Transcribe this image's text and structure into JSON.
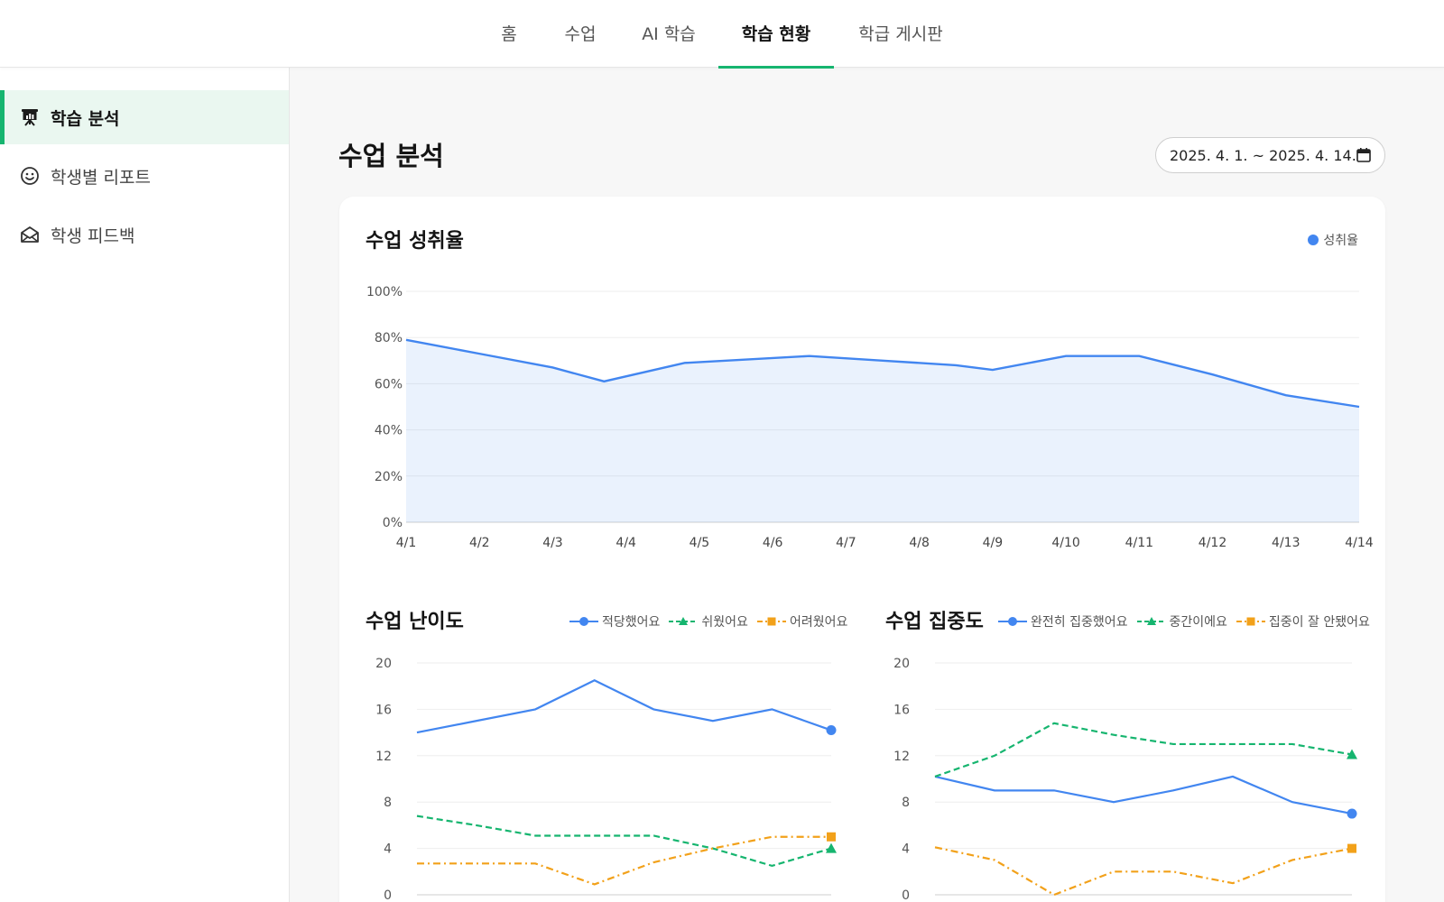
{
  "nav": {
    "tabs": [
      {
        "label": "홈"
      },
      {
        "label": "수업"
      },
      {
        "label": "AI 학습"
      },
      {
        "label": "학습 현황",
        "active": true
      },
      {
        "label": "학급 게시판"
      }
    ]
  },
  "sidebar": {
    "items": [
      {
        "label": "학습 분석",
        "icon": "presentation-chart-icon",
        "active": true
      },
      {
        "label": "학생별 리포트",
        "icon": "smiley-face-icon"
      },
      {
        "label": "학생 피드백",
        "icon": "open-envelope-icon"
      }
    ]
  },
  "main": {
    "title": "수업 분석",
    "date_range": "2025. 4. 1. ~ 2025. 4. 14."
  },
  "colors": {
    "accent": "#16b56f",
    "blue": "#4286f0",
    "green": "#16b56f",
    "orange": "#f2a11a"
  },
  "chart_data": [
    {
      "type": "area",
      "title": "수업 성취율",
      "legend_position": "top-right",
      "grid": true,
      "categories": [
        "4/1",
        "4/2",
        "4/3",
        "4/4",
        "4/5",
        "4/6",
        "4/7",
        "4/8",
        "4/9",
        "4/10",
        "4/11",
        "4/12",
        "4/13",
        "4/14"
      ],
      "y_ticks": [
        "0%",
        "20%",
        "40%",
        "60%",
        "80%",
        "100%"
      ],
      "ylim": [
        0,
        100
      ],
      "series": [
        {
          "name": "성취율",
          "x": [
            1,
            2,
            3,
            3.7,
            4.8,
            6.5,
            7.5,
            8.5,
            9,
            10,
            11,
            12,
            13,
            14
          ],
          "values": [
            79,
            73,
            67,
            61,
            69,
            72,
            70,
            68,
            66,
            72,
            72,
            64,
            55,
            50
          ]
        }
      ]
    },
    {
      "type": "line",
      "title": "수업 난이도",
      "legend_position": "top-right",
      "grid": true,
      "y_ticks": [
        "0",
        "4",
        "8",
        "12",
        "16",
        "20"
      ],
      "ylim": [
        0,
        20
      ],
      "series": [
        {
          "name": "적당했어요",
          "marker": "circle",
          "dash": "solid",
          "values": [
            14,
            15,
            16,
            18.5,
            16,
            15,
            16,
            14.2
          ]
        },
        {
          "name": "쉬웠어요",
          "marker": "triangle",
          "dash": "dashed",
          "values": [
            6.8,
            6,
            5.1,
            5.1,
            5.1,
            4,
            2.5,
            4
          ]
        },
        {
          "name": "어려웠어요",
          "marker": "square",
          "dash": "dashdot",
          "values": [
            2.7,
            2.7,
            2.7,
            0.9,
            2.8,
            4,
            5,
            5
          ]
        }
      ]
    },
    {
      "type": "line",
      "title": "수업 집중도",
      "legend_position": "top-right",
      "grid": true,
      "y_ticks": [
        "0",
        "4",
        "8",
        "12",
        "16",
        "20"
      ],
      "ylim": [
        0,
        20
      ],
      "series": [
        {
          "name": "완전히 집중했어요",
          "marker": "circle",
          "dash": "solid",
          "values": [
            10.2,
            9,
            9,
            8,
            9,
            10.2,
            8,
            7
          ]
        },
        {
          "name": "중간이에요",
          "marker": "triangle",
          "dash": "dashed",
          "values": [
            10.2,
            12,
            14.8,
            13.8,
            13,
            13,
            13,
            12.1
          ]
        },
        {
          "name": "집중이 잘 안됐어요",
          "marker": "square",
          "dash": "dashdot",
          "values": [
            4.1,
            3,
            0,
            2,
            2,
            1,
            3,
            4
          ]
        }
      ]
    }
  ]
}
